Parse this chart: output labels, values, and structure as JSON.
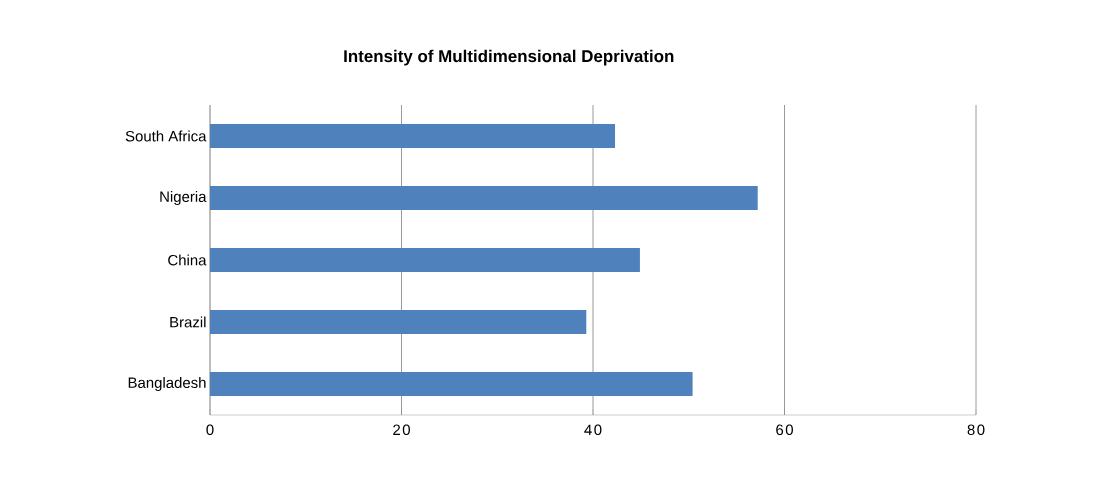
{
  "chart_data": {
    "type": "bar",
    "orientation": "horizontal",
    "title": "Intensity of Multidimensional Deprivation",
    "categories": [
      "South Africa",
      "Nigeria",
      "China",
      "Brazil",
      "Bangladesh"
    ],
    "values": [
      42.3,
      57.2,
      44.9,
      39.3,
      50.4
    ],
    "color": "#4f81bd",
    "xlim": [
      0,
      80
    ],
    "xticks": [
      0,
      20,
      40,
      60,
      80
    ],
    "grid": "x"
  }
}
